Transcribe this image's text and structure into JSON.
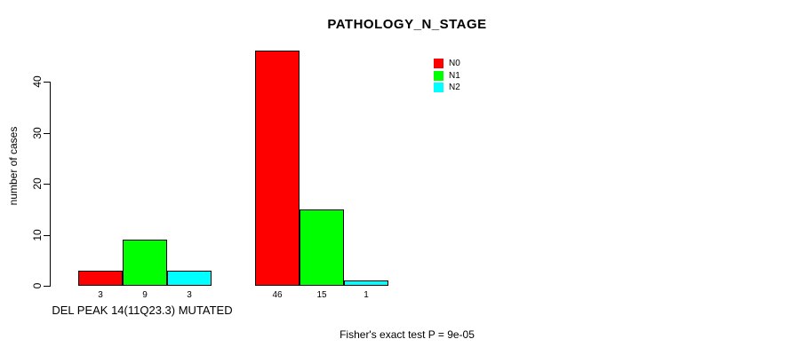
{
  "chart_data": {
    "type": "bar",
    "title": "PATHOLOGY_N_STAGE",
    "ylabel": "number of cases",
    "xlabel": "",
    "categories": [
      "DEL PEAK 14(11Q23.3) MUTATED",
      ""
    ],
    "series": [
      {
        "name": "N0",
        "color": "#ff0000",
        "values": [
          3,
          46
        ]
      },
      {
        "name": "N1",
        "color": "#00ff00",
        "values": [
          9,
          15
        ]
      },
      {
        "name": "N2",
        "color": "#00ffff",
        "values": [
          3,
          1
        ]
      }
    ],
    "bar_value_labels": [
      [
        "3",
        "9",
        "3"
      ],
      [
        "46",
        "15",
        "1"
      ]
    ],
    "yticks": [
      0,
      10,
      20,
      30,
      40
    ],
    "ylim": [
      0,
      46
    ],
    "grid": false,
    "legend_position": "top-right",
    "footer": "Fisher's exact test P = 9e-05"
  }
}
